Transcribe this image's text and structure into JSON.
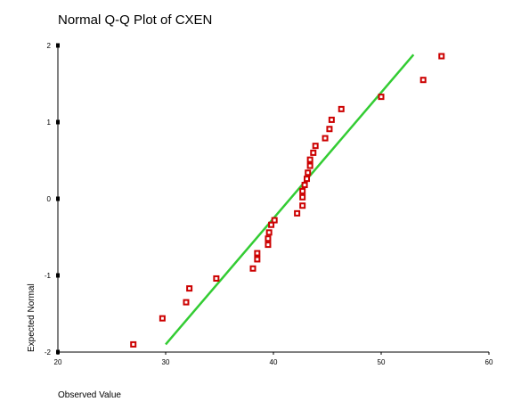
{
  "chart_data": {
    "type": "scatter",
    "title": "Normal Q-Q Plot of CXEN",
    "xlabel": "Observed Value",
    "ylabel": "Expected Normal",
    "xlim": [
      20,
      60
    ],
    "ylim": [
      -2,
      2
    ],
    "x_ticks": [
      "20",
      "30",
      "40",
      "50",
      "60"
    ],
    "y_ticks": [
      "-2",
      "-1",
      "0",
      "1",
      "2"
    ],
    "grid": false,
    "reference_line": {
      "x": [
        30,
        53
      ],
      "y": [
        -1.9,
        1.88
      ],
      "color": "#33cc33"
    },
    "marker_color": "#cc0000",
    "points": [
      [
        27,
        -1.9
      ],
      [
        29.7,
        -1.56
      ],
      [
        31.9,
        -1.35
      ],
      [
        32.2,
        -1.17
      ],
      [
        34.7,
        -1.04
      ],
      [
        38.1,
        -0.91
      ],
      [
        38.5,
        -0.79
      ],
      [
        38.5,
        -0.71
      ],
      [
        39.5,
        -0.6
      ],
      [
        39.5,
        -0.52
      ],
      [
        39.6,
        -0.44
      ],
      [
        39.8,
        -0.34
      ],
      [
        40.1,
        -0.28
      ],
      [
        42.2,
        -0.19
      ],
      [
        42.7,
        -0.09
      ],
      [
        42.7,
        0.02
      ],
      [
        42.7,
        0.1
      ],
      [
        42.9,
        0.18
      ],
      [
        43.1,
        0.26
      ],
      [
        43.2,
        0.34
      ],
      [
        43.4,
        0.43
      ],
      [
        43.4,
        0.51
      ],
      [
        43.7,
        0.6
      ],
      [
        43.9,
        0.69
      ],
      [
        44.8,
        0.79
      ],
      [
        45.2,
        0.91
      ],
      [
        45.4,
        1.03
      ],
      [
        46.3,
        1.17
      ],
      [
        50,
        1.33
      ],
      [
        53.9,
        1.55
      ],
      [
        55.6,
        1.86
      ]
    ]
  }
}
